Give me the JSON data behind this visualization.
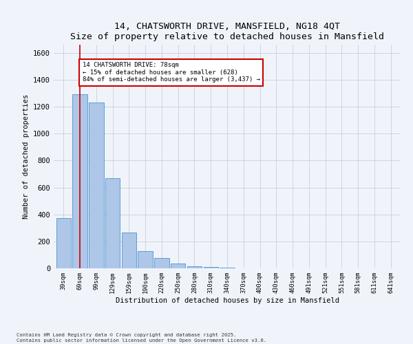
{
  "title": "14, CHATSWORTH DRIVE, MANSFIELD, NG18 4QT",
  "subtitle": "Size of property relative to detached houses in Mansfield",
  "xlabel": "Distribution of detached houses by size in Mansfield",
  "ylabel": "Number of detached properties",
  "bar_labels": [
    "39sqm",
    "69sqm",
    "99sqm",
    "129sqm",
    "159sqm",
    "190sqm",
    "220sqm",
    "250sqm",
    "280sqm",
    "310sqm",
    "340sqm",
    "370sqm",
    "400sqm",
    "430sqm",
    "460sqm",
    "491sqm",
    "521sqm",
    "551sqm",
    "581sqm",
    "611sqm",
    "641sqm"
  ],
  "bar_values": [
    375,
    1290,
    1230,
    670,
    265,
    130,
    75,
    35,
    15,
    8,
    4,
    2,
    1,
    1,
    0,
    0,
    0,
    0,
    0,
    0,
    0
  ],
  "bar_color": "#aec6e8",
  "bar_edge_color": "#5a9fd4",
  "red_line_x": 1.0,
  "annotation_text": "14 CHATSWORTH DRIVE: 78sqm\n← 15% of detached houses are smaller (628)\n84% of semi-detached houses are larger (3,437) →",
  "annotation_box_color": "#ffffff",
  "annotation_box_edge": "#cc0000",
  "red_line_color": "#cc0000",
  "footer1": "Contains HM Land Registry data © Crown copyright and database right 2025.",
  "footer2": "Contains public sector information licensed under the Open Government Licence v3.0.",
  "bg_color": "#f0f4fa",
  "grid_color": "#c8d0dc",
  "ylim": [
    0,
    1660
  ],
  "yticks": [
    0,
    200,
    400,
    600,
    800,
    1000,
    1200,
    1400,
    1600
  ]
}
